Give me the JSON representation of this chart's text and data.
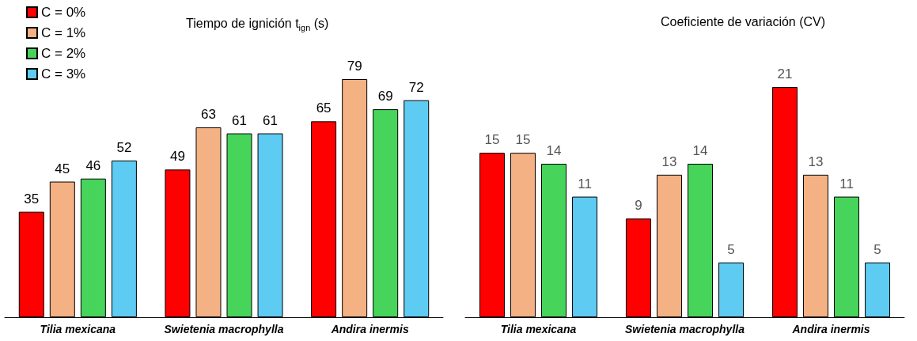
{
  "chart_data": [
    {
      "type": "bar",
      "title": "Tiempo de ignición t$_{ign}$ (s)",
      "categories": [
        "Tilia mexicana",
        "Swietenia macrophylla",
        "Andira inermis"
      ],
      "series": [
        {
          "name": "C = 0%",
          "color": "#ff0000",
          "values": [
            35,
            49,
            65
          ]
        },
        {
          "name": "C = 1%",
          "color": "#f4b183",
          "values": [
            45,
            63,
            79
          ]
        },
        {
          "name": "C = 2%",
          "color": "#47d45a",
          "values": [
            46,
            61,
            69
          ]
        },
        {
          "name": "C = 3%",
          "color": "#5ecbf2",
          "values": [
            52,
            61,
            72
          ]
        }
      ],
      "tick_labels": "x",
      "data_labels": true,
      "legend": "top left"
    },
    {
      "type": "bar",
      "title": "Coeficiente de variación (CV)",
      "categories": [
        "Tilia mexicana",
        "Swietenia macrophylla",
        "Andira inermis"
      ],
      "series": [
        {
          "color": "#ff0000",
          "values": [
            15,
            9,
            21
          ]
        },
        {
          "color": "#f4b183",
          "values": [
            15,
            13,
            13
          ]
        },
        {
          "color": "#47d45a",
          "values": [
            14,
            14,
            11
          ]
        },
        {
          "color": "#5ecbf2",
          "values": [
            11,
            5,
            5
          ]
        }
      ],
      "tick_labels": "x",
      "data_labels": true,
      "legend": false
    }
  ]
}
